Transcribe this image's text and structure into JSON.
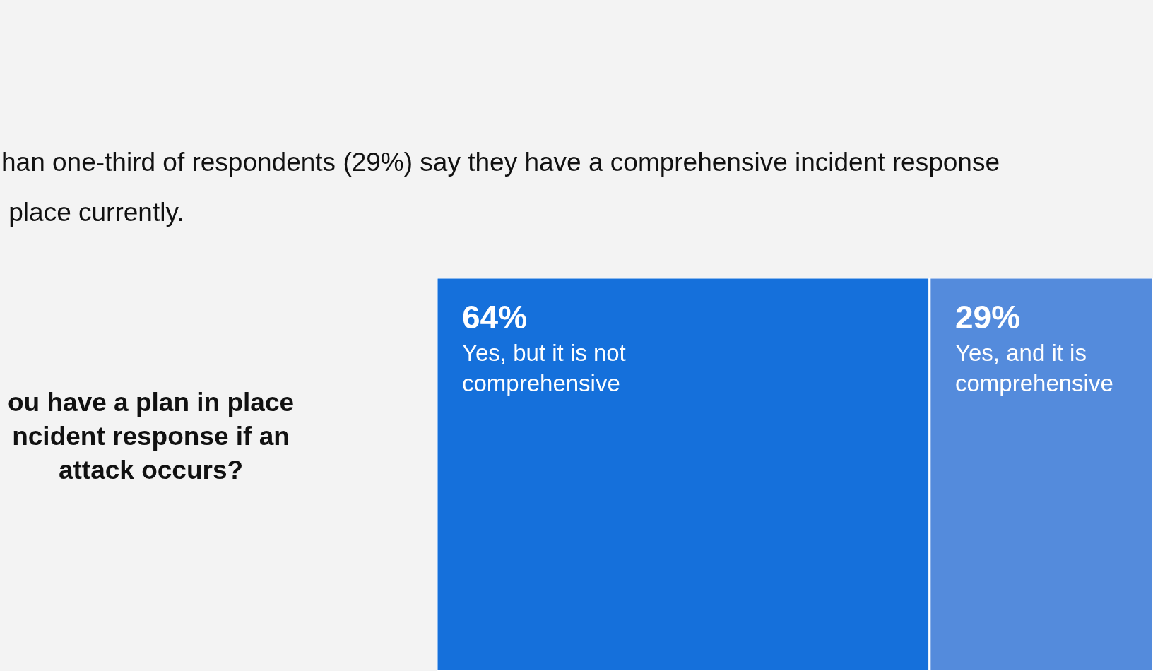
{
  "chart_data": {
    "type": "other",
    "title": "han one-third of respondents (29%) say they have a comprehensive incident response\n place currently.",
    "subtitle": "ou have a plan in place\nncident response if an\nattack occurs?",
    "categories": [
      "Yes, but it is not\ncomprehensive",
      "Yes, and it is\ncomprehensive"
    ],
    "values": [
      64,
      29
    ],
    "value_labels": [
      "64%",
      "29%"
    ],
    "colors": [
      "#1570db",
      "#548bdc"
    ]
  }
}
